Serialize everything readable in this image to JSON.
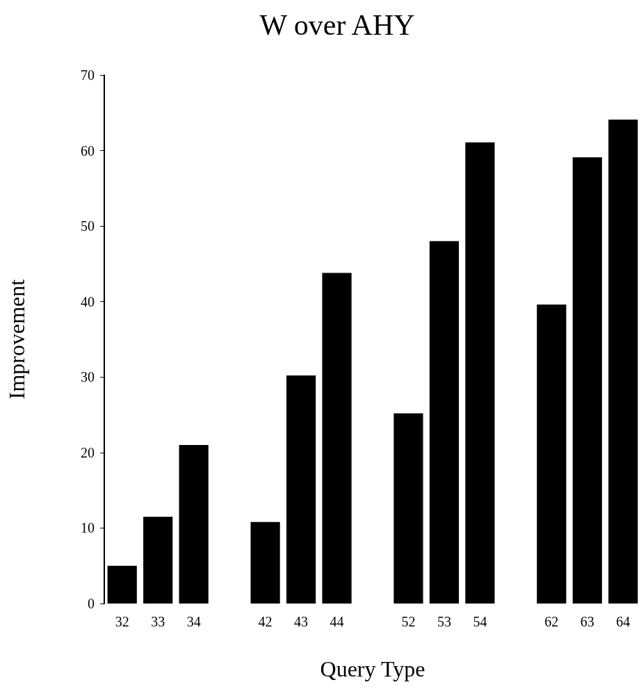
{
  "chart_data": {
    "type": "bar",
    "title": "W over AHY",
    "xlabel": "Query Type",
    "ylabel": "Improvement",
    "categories": [
      "32",
      "33",
      "34",
      null,
      "42",
      "43",
      "44",
      null,
      "52",
      "53",
      "54",
      null,
      "62",
      "63",
      "64"
    ],
    "values": [
      5,
      11.5,
      21,
      null,
      10.8,
      30.2,
      43.8,
      null,
      25.2,
      48,
      61.1,
      null,
      39.6,
      59.1,
      64.1
    ],
    "color": "#000000",
    "ylim": [
      0,
      70
    ],
    "yticks": [
      0,
      10,
      20,
      30,
      40,
      50,
      60,
      70
    ],
    "grid": false
  }
}
